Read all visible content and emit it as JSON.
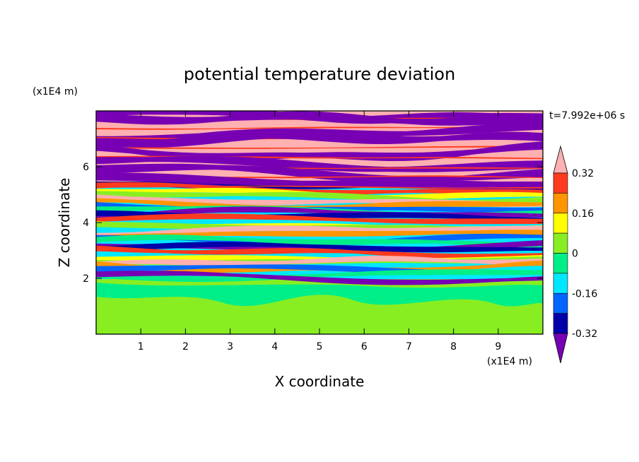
{
  "chart_data": {
    "type": "heatmap",
    "title": "potential temperature deviation",
    "xlabel": "X coordinate",
    "ylabel": "Z coordinate",
    "x_unit": "(x1E4 m)",
    "y_unit": "(x1E4 m)",
    "time_label": "t=7.992e+06 s",
    "xlim": [
      0,
      10
    ],
    "ylim": [
      0,
      8
    ],
    "xticks": [
      "1",
      "2",
      "3",
      "4",
      "5",
      "6",
      "7",
      "8",
      "9"
    ],
    "yticks": [
      "2",
      "4",
      "6"
    ],
    "colorbar": {
      "tick_labels": [
        "0.32",
        "0.16",
        "0",
        "-0.16",
        "-0.32"
      ],
      "tick_values": [
        0.32,
        0.16,
        0,
        -0.16,
        -0.32
      ],
      "levels": [
        {
          "min": 0.32,
          "color": "#ffb0b0"
        },
        {
          "min": 0.24,
          "color": "#ff3a1e"
        },
        {
          "min": 0.16,
          "color": "#ff9600"
        },
        {
          "min": 0.08,
          "color": "#ffff00"
        },
        {
          "min": 0.0,
          "color": "#88ee22"
        },
        {
          "min": -0.08,
          "color": "#00ee88"
        },
        {
          "min": -0.16,
          "color": "#00e8ff"
        },
        {
          "min": -0.24,
          "color": "#0066ff"
        },
        {
          "min": -0.32,
          "color": "#0000aa"
        },
        {
          "min": -1.0,
          "color": "#7700b4"
        }
      ]
    },
    "grid": false,
    "legend": "colorbar-right"
  }
}
